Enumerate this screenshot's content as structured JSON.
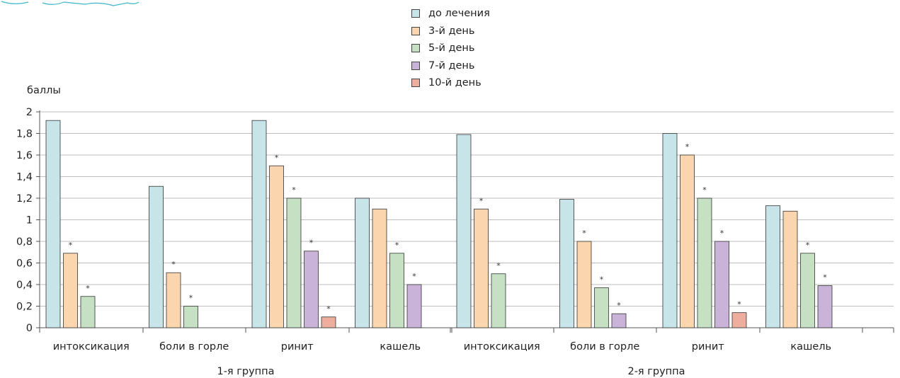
{
  "chart_data": {
    "type": "bar",
    "ylabel": "баллы",
    "ylim": [
      0,
      2
    ],
    "yticks": [
      "0",
      "0,2",
      "0,4",
      "0,6",
      "0,8",
      "1",
      "1,2",
      "1,4",
      "1,6",
      "1,8",
      "2"
    ],
    "grid": true,
    "legend_position": "top-center",
    "series": [
      {
        "name": "до лечения",
        "color": "#c7e4e9"
      },
      {
        "name": "3-й день",
        "color": "#fbd5ae"
      },
      {
        "name": "5-й день",
        "color": "#c5e0c3"
      },
      {
        "name": "7-й день",
        "color": "#c9b3d8"
      },
      {
        "name": "10-й день",
        "color": "#eeae9d"
      }
    ],
    "groups": [
      {
        "label": "1-я группа",
        "categories": [
          {
            "label": "интоксикация",
            "values": [
              1.92,
              0.69,
              0.29,
              null,
              null
            ],
            "stars": [
              false,
              true,
              true,
              false,
              false
            ]
          },
          {
            "label": "боли в горле",
            "values": [
              1.31,
              0.51,
              0.2,
              null,
              null
            ],
            "stars": [
              false,
              true,
              true,
              false,
              false
            ]
          },
          {
            "label": "ринит",
            "values": [
              1.92,
              1.5,
              1.2,
              0.71,
              0.1
            ],
            "stars": [
              false,
              true,
              true,
              true,
              true
            ]
          },
          {
            "label": "кашель",
            "values": [
              1.2,
              1.1,
              0.69,
              0.4,
              null
            ],
            "stars": [
              false,
              false,
              true,
              true,
              false
            ]
          }
        ]
      },
      {
        "label": "2-я группа",
        "categories": [
          {
            "label": "интоксикация",
            "values": [
              1.79,
              1.1,
              0.5,
              null,
              null
            ],
            "stars": [
              false,
              true,
              true,
              false,
              false
            ]
          },
          {
            "label": "боли в горле",
            "values": [
              1.19,
              0.8,
              0.37,
              0.13,
              null
            ],
            "stars": [
              false,
              true,
              true,
              true,
              false
            ]
          },
          {
            "label": "ринит",
            "values": [
              1.8,
              1.6,
              1.2,
              0.8,
              0.14
            ],
            "stars": [
              false,
              true,
              true,
              true,
              true
            ]
          },
          {
            "label": "кашель",
            "values": [
              1.13,
              1.08,
              0.69,
              0.39,
              null
            ],
            "stars": [
              false,
              false,
              true,
              true,
              false
            ]
          }
        ]
      }
    ],
    "significance_mark": "*"
  }
}
